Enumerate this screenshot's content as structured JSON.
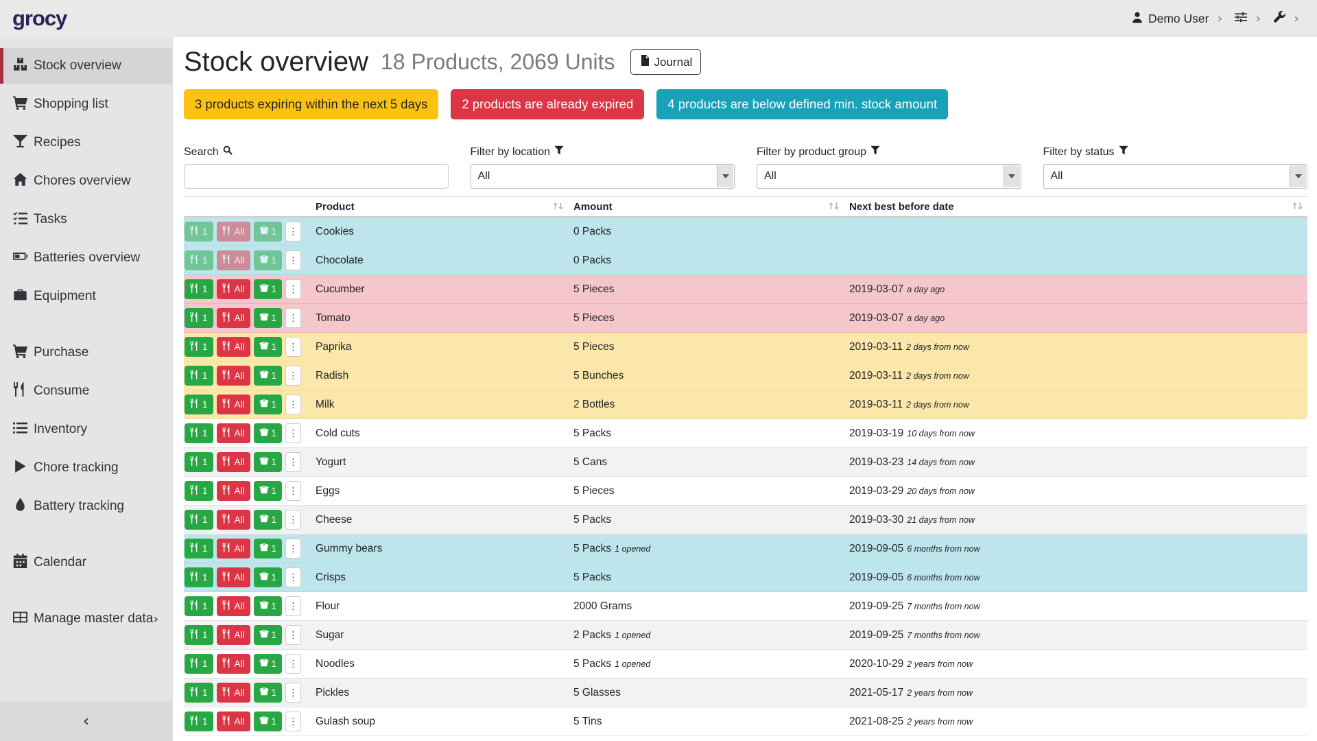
{
  "topbar": {
    "logo": "grocy",
    "user": "Demo User"
  },
  "icons": {
    "sort": "↑↓",
    "chevron_right": "›",
    "chevron_left": "‹",
    "ellipsis": "⋮"
  },
  "colors": {
    "brand_red": "#ab2f3e",
    "warning": "#fdc112",
    "danger": "#dc3545",
    "info": "#17a2b8",
    "success": "#28a745",
    "row_info": "#bee5eb",
    "row_danger": "#f5c6cb",
    "row_warning": "#fbe7a9"
  },
  "sidebar": {
    "collapse_icon": "‹",
    "groups": [
      {
        "items": [
          {
            "label": "Stock overview",
            "icon": "boxes-icon",
            "active": true
          },
          {
            "label": "Shopping list",
            "icon": "cart-icon"
          },
          {
            "label": "Recipes",
            "icon": "cocktail-icon"
          },
          {
            "label": "Chores overview",
            "icon": "home-icon"
          },
          {
            "label": "Tasks",
            "icon": "tasks-icon"
          },
          {
            "label": "Batteries overview",
            "icon": "battery-icon"
          },
          {
            "label": "Equipment",
            "icon": "toolbox-icon"
          }
        ]
      },
      {
        "items": [
          {
            "label": "Purchase",
            "icon": "cart-icon"
          },
          {
            "label": "Consume",
            "icon": "utensils-icon"
          },
          {
            "label": "Inventory",
            "icon": "list-icon"
          },
          {
            "label": "Chore tracking",
            "icon": "play-icon"
          },
          {
            "label": "Battery tracking",
            "icon": "droplet-icon"
          }
        ]
      },
      {
        "items": [
          {
            "label": "Calendar",
            "icon": "calendar-icon"
          }
        ]
      },
      {
        "items": [
          {
            "label": "Manage master data",
            "icon": "table-icon",
            "submenu": true
          }
        ]
      }
    ]
  },
  "header": {
    "title": "Stock overview",
    "subtitle": "18 Products, 2069 Units",
    "journal_label": "Journal"
  },
  "alerts": [
    {
      "type": "warning",
      "text": "3 products expiring within the next 5 days"
    },
    {
      "type": "danger",
      "text": "2 products are already expired"
    },
    {
      "type": "info",
      "text": "4 products are below defined min. stock amount"
    }
  ],
  "filters": {
    "search_label": "Search",
    "location_label": "Filter by location",
    "group_label": "Filter by product group",
    "status_label": "Filter by status",
    "search_value": "",
    "all_option": "All"
  },
  "table": {
    "columns": [
      "Product",
      "Amount",
      "Next best before date"
    ],
    "row_actions": {
      "consume_one": "1",
      "consume_all": "All",
      "open_one": "1"
    },
    "rows": [
      {
        "product": "Cookies",
        "amount": "0 Packs",
        "amount_note": "",
        "date": "",
        "date_note": "",
        "status": "info",
        "disabled": true
      },
      {
        "product": "Chocolate",
        "amount": "0 Packs",
        "amount_note": "",
        "date": "",
        "date_note": "",
        "status": "info",
        "disabled": true
      },
      {
        "product": "Cucumber",
        "amount": "5 Pieces",
        "amount_note": "",
        "date": "2019-03-07",
        "date_note": "a day ago",
        "status": "danger"
      },
      {
        "product": "Tomato",
        "amount": "5 Pieces",
        "amount_note": "",
        "date": "2019-03-07",
        "date_note": "a day ago",
        "status": "danger"
      },
      {
        "product": "Paprika",
        "amount": "5 Pieces",
        "amount_note": "",
        "date": "2019-03-11",
        "date_note": "2 days from now",
        "status": "warning"
      },
      {
        "product": "Radish",
        "amount": "5 Bunches",
        "amount_note": "",
        "date": "2019-03-11",
        "date_note": "2 days from now",
        "status": "warning"
      },
      {
        "product": "Milk",
        "amount": "2 Bottles",
        "amount_note": "",
        "date": "2019-03-11",
        "date_note": "2 days from now",
        "status": "warning"
      },
      {
        "product": "Cold cuts",
        "amount": "5 Packs",
        "amount_note": "",
        "date": "2019-03-19",
        "date_note": "10 days from now"
      },
      {
        "product": "Yogurt",
        "amount": "5 Cans",
        "amount_note": "",
        "date": "2019-03-23",
        "date_note": "14 days from now"
      },
      {
        "product": "Eggs",
        "amount": "5 Pieces",
        "amount_note": "",
        "date": "2019-03-29",
        "date_note": "20 days from now"
      },
      {
        "product": "Cheese",
        "amount": "5 Packs",
        "amount_note": "",
        "date": "2019-03-30",
        "date_note": "21 days from now"
      },
      {
        "product": "Gummy bears",
        "amount": "5 Packs",
        "amount_note": "1 opened",
        "date": "2019-09-05",
        "date_note": "6 months from now",
        "status": "info"
      },
      {
        "product": "Crisps",
        "amount": "5 Packs",
        "amount_note": "",
        "date": "2019-09-05",
        "date_note": "6 months from now",
        "status": "info"
      },
      {
        "product": "Flour",
        "amount": "2000 Grams",
        "amount_note": "",
        "date": "2019-09-25",
        "date_note": "7 months from now"
      },
      {
        "product": "Sugar",
        "amount": "2 Packs",
        "amount_note": "1 opened",
        "date": "2019-09-25",
        "date_note": "7 months from now"
      },
      {
        "product": "Noodles",
        "amount": "5 Packs",
        "amount_note": "1 opened",
        "date": "2020-10-29",
        "date_note": "2 years from now"
      },
      {
        "product": "Pickles",
        "amount": "5 Glasses",
        "amount_note": "",
        "date": "2021-05-17",
        "date_note": "2 years from now"
      },
      {
        "product": "Gulash soup",
        "amount": "5 Tins",
        "amount_note": "",
        "date": "2021-08-25",
        "date_note": "2 years from now"
      }
    ]
  }
}
